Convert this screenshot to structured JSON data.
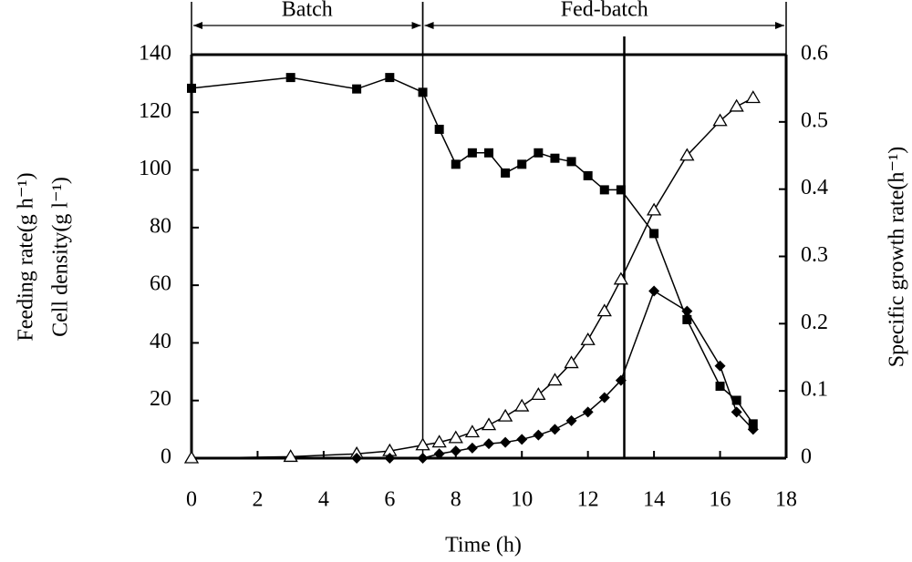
{
  "chart_data": {
    "type": "line",
    "xlabel": "Time (h)",
    "ylabel": [
      "Feeding rate(g h⁻¹)",
      "Cell density(g l⁻¹)"
    ],
    "y2label": "Specific growth rate(h⁻¹)",
    "xlim": [
      0,
      18
    ],
    "xticks": [
      0,
      2,
      4,
      6,
      8,
      10,
      12,
      14,
      16,
      18
    ],
    "ylim": [
      0,
      140
    ],
    "yticks": [
      0,
      20,
      40,
      60,
      80,
      100,
      120,
      140
    ],
    "y2lim": [
      0,
      0.6
    ],
    "y2ticks": [
      {
        "value": 0,
        "label": "0"
      },
      0.1,
      0.2,
      0.3,
      0.4,
      0.5,
      0.6
    ],
    "phases": [
      {
        "label": "Batch",
        "start": 0,
        "end": 7
      },
      {
        "label": "Fed-batch",
        "start": 7,
        "end": 18
      }
    ],
    "vlines": [
      7,
      13.1
    ],
    "series": [
      {
        "marker": "square",
        "color": "#000",
        "axis": "y2",
        "x": [
          0,
          3,
          5,
          6,
          7,
          7.5,
          8,
          8.5,
          9,
          9.5,
          10,
          10.5,
          11,
          11.5,
          12,
          12.5,
          13,
          14,
          15,
          16,
          16.5,
          17
        ],
        "values": [
          0.55,
          0.566,
          0.549,
          0.566,
          0.544,
          0.489,
          0.437,
          0.454,
          0.454,
          0.424,
          0.437,
          0.454,
          0.446,
          0.441,
          0.42,
          0.399,
          0.399,
          0.334,
          0.206,
          0.107,
          0.086,
          0.051
        ]
      },
      {
        "marker": "triangle",
        "color": "#000",
        "x": [
          0,
          3,
          5,
          6,
          7,
          7.5,
          8,
          8.5,
          9,
          9.5,
          10,
          10.5,
          11,
          11.5,
          12,
          12.5,
          13,
          14,
          15,
          16,
          16.5,
          17
        ],
        "values": [
          0,
          0.5,
          1.5,
          2.5,
          4.5,
          5.5,
          7,
          9,
          11.5,
          14.5,
          18,
          22,
          27,
          33,
          41,
          51,
          62,
          86,
          105,
          117,
          122,
          125
        ]
      },
      {
        "marker": "diamond",
        "color": "#000",
        "x": [
          5,
          6,
          7,
          7.5,
          8,
          8.5,
          9,
          9.5,
          10,
          10.5,
          11,
          11.5,
          12,
          12.5,
          13,
          14,
          15,
          16,
          16.5,
          17
        ],
        "values": [
          0,
          0,
          0,
          1.5,
          2.5,
          3.5,
          5,
          5.5,
          6.5,
          8,
          10,
          13,
          16,
          21,
          27,
          58,
          51,
          32,
          16,
          10
        ]
      }
    ]
  }
}
